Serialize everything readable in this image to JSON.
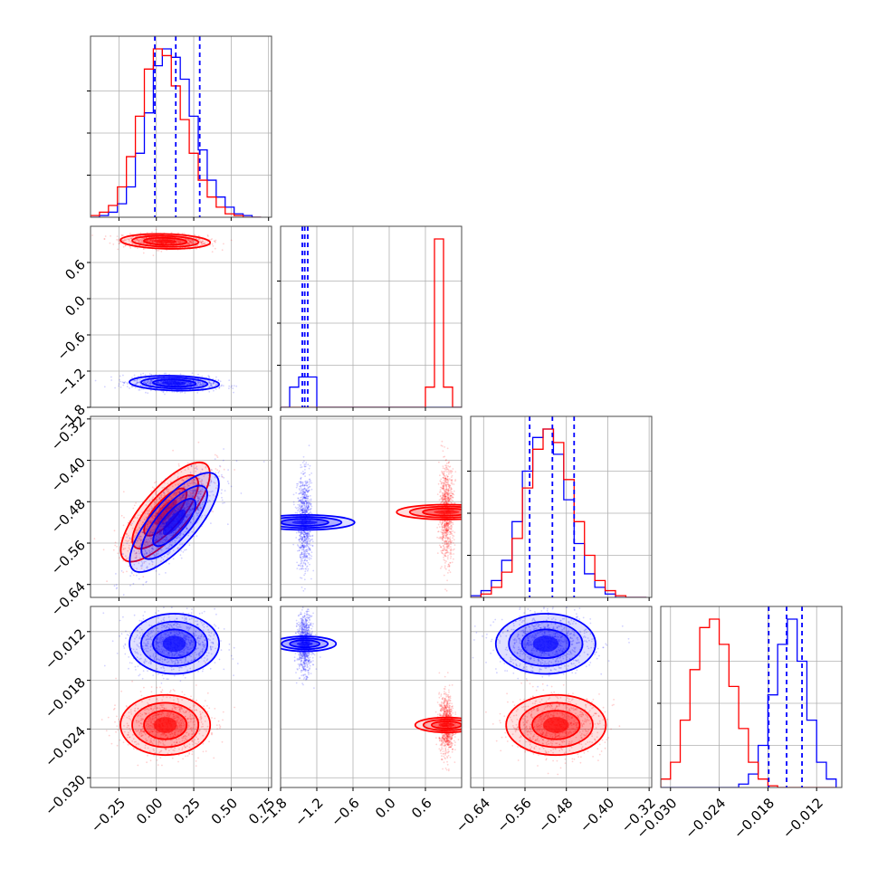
{
  "chart_data": {
    "type": "corner",
    "grid": true,
    "colors": {
      "series_a": "#ff0000",
      "series_b": "#0000ff"
    },
    "parameters": [
      {
        "ticks": [
          -0.25,
          0.0,
          0.25,
          0.5,
          0.75
        ],
        "tick_labels": [
          "−0.25",
          "0.00",
          "0.25",
          "0.50",
          "0.75"
        ],
        "range": [
          -0.44,
          0.77
        ]
      },
      {
        "ticks": [
          -1.8,
          -1.2,
          -0.6,
          0.0,
          0.6
        ],
        "tick_labels": [
          "−1.8",
          "−1.2",
          "−0.6",
          "0.0",
          "0.6"
        ],
        "range": [
          -1.8,
          1.2
        ]
      },
      {
        "ticks": [
          -0.64,
          -0.56,
          -0.48,
          -0.4,
          -0.32
        ],
        "tick_labels": [
          "−0.64",
          "−0.56",
          "−0.48",
          "−0.40",
          "−0.32"
        ],
        "range": [
          -0.665,
          -0.315
        ]
      },
      {
        "ticks": [
          -0.03,
          -0.024,
          -0.018,
          -0.012
        ],
        "tick_labels": [
          "−0.030",
          "−0.024",
          "−0.018",
          "−0.012"
        ],
        "range": [
          -0.0312,
          -0.0089
        ]
      }
    ],
    "histograms": [
      {
        "edges": [
          -0.44,
          -0.38,
          -0.32,
          -0.26,
          -0.2,
          -0.14,
          -0.08,
          -0.02,
          0.04,
          0.1,
          0.16,
          0.22,
          0.28,
          0.34,
          0.4,
          0.46,
          0.52,
          0.58,
          0.64,
          0.7
        ],
        "series_b": [
          0.0,
          0.01,
          0.03,
          0.08,
          0.18,
          0.38,
          0.62,
          0.9,
          1.0,
          0.95,
          0.82,
          0.6,
          0.4,
          0.22,
          0.12,
          0.06,
          0.02,
          0.01,
          0.0
        ],
        "series_a": [
          0.01,
          0.03,
          0.07,
          0.18,
          0.36,
          0.6,
          0.88,
          1.0,
          0.96,
          0.78,
          0.58,
          0.38,
          0.22,
          0.12,
          0.06,
          0.02,
          0.01,
          0.0,
          0.0
        ],
        "quantiles": [
          -0.01,
          0.13,
          0.29
        ]
      },
      {
        "edges": [
          -1.8,
          -1.65,
          -1.5,
          -1.35,
          -1.2,
          -1.05,
          -0.9,
          -0.75,
          -0.6,
          -0.45,
          -0.3,
          -0.15,
          0.0,
          0.15,
          0.3,
          0.45,
          0.6,
          0.75,
          0.9,
          1.05,
          1.2
        ],
        "series_b": [
          0,
          0.12,
          0.18,
          0.18,
          0,
          0,
          0,
          0,
          0,
          0,
          0,
          0,
          0,
          0,
          0,
          0,
          0,
          0,
          0,
          0
        ],
        "series_a": [
          0,
          0,
          0,
          0,
          0,
          0,
          0,
          0,
          0,
          0,
          0,
          0,
          0,
          0,
          0,
          0,
          0.12,
          1.0,
          0.12,
          0
        ],
        "quantiles": [
          -1.44,
          -1.4,
          -1.35
        ]
      },
      {
        "edges": [
          -0.665,
          -0.645,
          -0.625,
          -0.605,
          -0.585,
          -0.565,
          -0.545,
          -0.525,
          -0.505,
          -0.485,
          -0.465,
          -0.445,
          -0.425,
          -0.405,
          -0.385,
          -0.365,
          -0.345,
          -0.325
        ],
        "series_b": [
          0.01,
          0.04,
          0.1,
          0.22,
          0.45,
          0.75,
          0.95,
          1.0,
          0.85,
          0.58,
          0.32,
          0.14,
          0.06,
          0.02,
          0.0,
          0.0,
          0.0
        ],
        "series_a": [
          0.0,
          0.02,
          0.06,
          0.15,
          0.35,
          0.65,
          0.88,
          1.0,
          0.92,
          0.7,
          0.45,
          0.25,
          0.1,
          0.04,
          0.01,
          0.0,
          0.0
        ],
        "quantiles": [
          -0.551,
          -0.507,
          -0.465
        ]
      },
      {
        "edges": [
          -0.0312,
          -0.03,
          -0.0288,
          -0.0276,
          -0.0264,
          -0.0252,
          -0.024,
          -0.0228,
          -0.0216,
          -0.0204,
          -0.0192,
          -0.018,
          -0.0168,
          -0.0156,
          -0.0144,
          -0.0132,
          -0.012,
          -0.0108,
          -0.0096
        ],
        "series_b": [
          0.0,
          0.0,
          0.0,
          0.0,
          0.0,
          0.0,
          0.0,
          0.0,
          0.02,
          0.08,
          0.25,
          0.55,
          0.85,
          1.0,
          0.75,
          0.4,
          0.15,
          0.05
        ],
        "series_a": [
          0.05,
          0.15,
          0.4,
          0.7,
          0.95,
          1.0,
          0.85,
          0.6,
          0.35,
          0.15,
          0.05,
          0.01,
          0.0,
          0.0,
          0.0,
          0.0,
          0.0,
          0.0
        ],
        "quantiles": [
          -0.0179,
          -0.0157,
          -0.0138
        ]
      }
    ],
    "series_a_center": [
      0.06,
      0.95,
      -0.5,
      -0.0235
    ],
    "series_b_center": [
      0.12,
      -1.4,
      -0.52,
      -0.0135
    ],
    "series_a_sd": [
      0.14,
      0.06,
      0.045,
      0.0018
    ],
    "series_b_sd": [
      0.14,
      0.06,
      0.045,
      0.0018
    ],
    "correlation_0_2": 0.75
  }
}
